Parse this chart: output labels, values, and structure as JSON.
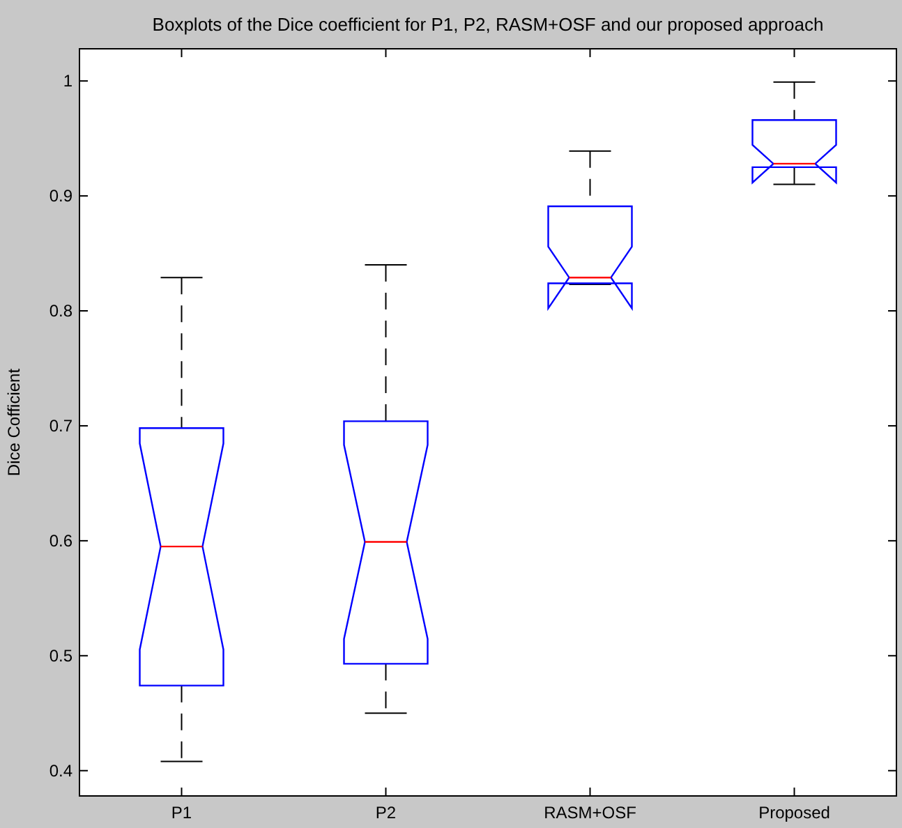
{
  "chart_data": {
    "type": "box",
    "title": "Boxplots of the Dice coefficient for P1, P2, RASM+OSF and our proposed approach",
    "ylabel": "Dice Cofficient",
    "categories": [
      "P1",
      "P2",
      "RASM+OSF",
      "Proposed"
    ],
    "boxes": [
      {
        "low": 0.408,
        "q1": 0.474,
        "median": 0.595,
        "q3": 0.698,
        "high": 0.829
      },
      {
        "low": 0.45,
        "q1": 0.493,
        "median": 0.599,
        "q3": 0.704,
        "high": 0.84
      },
      {
        "low": 0.823,
        "q1": 0.824,
        "median": 0.829,
        "q3": 0.891,
        "high": 0.939
      },
      {
        "low": 0.91,
        "q1": 0.925,
        "median": 0.928,
        "q3": 0.966,
        "high": 0.999
      }
    ],
    "color": "#0000ff",
    "ylim": [
      0.378,
      1.028
    ],
    "yticks": [
      0.4,
      0.5,
      0.6,
      0.7,
      0.8,
      0.9,
      1
    ]
  }
}
